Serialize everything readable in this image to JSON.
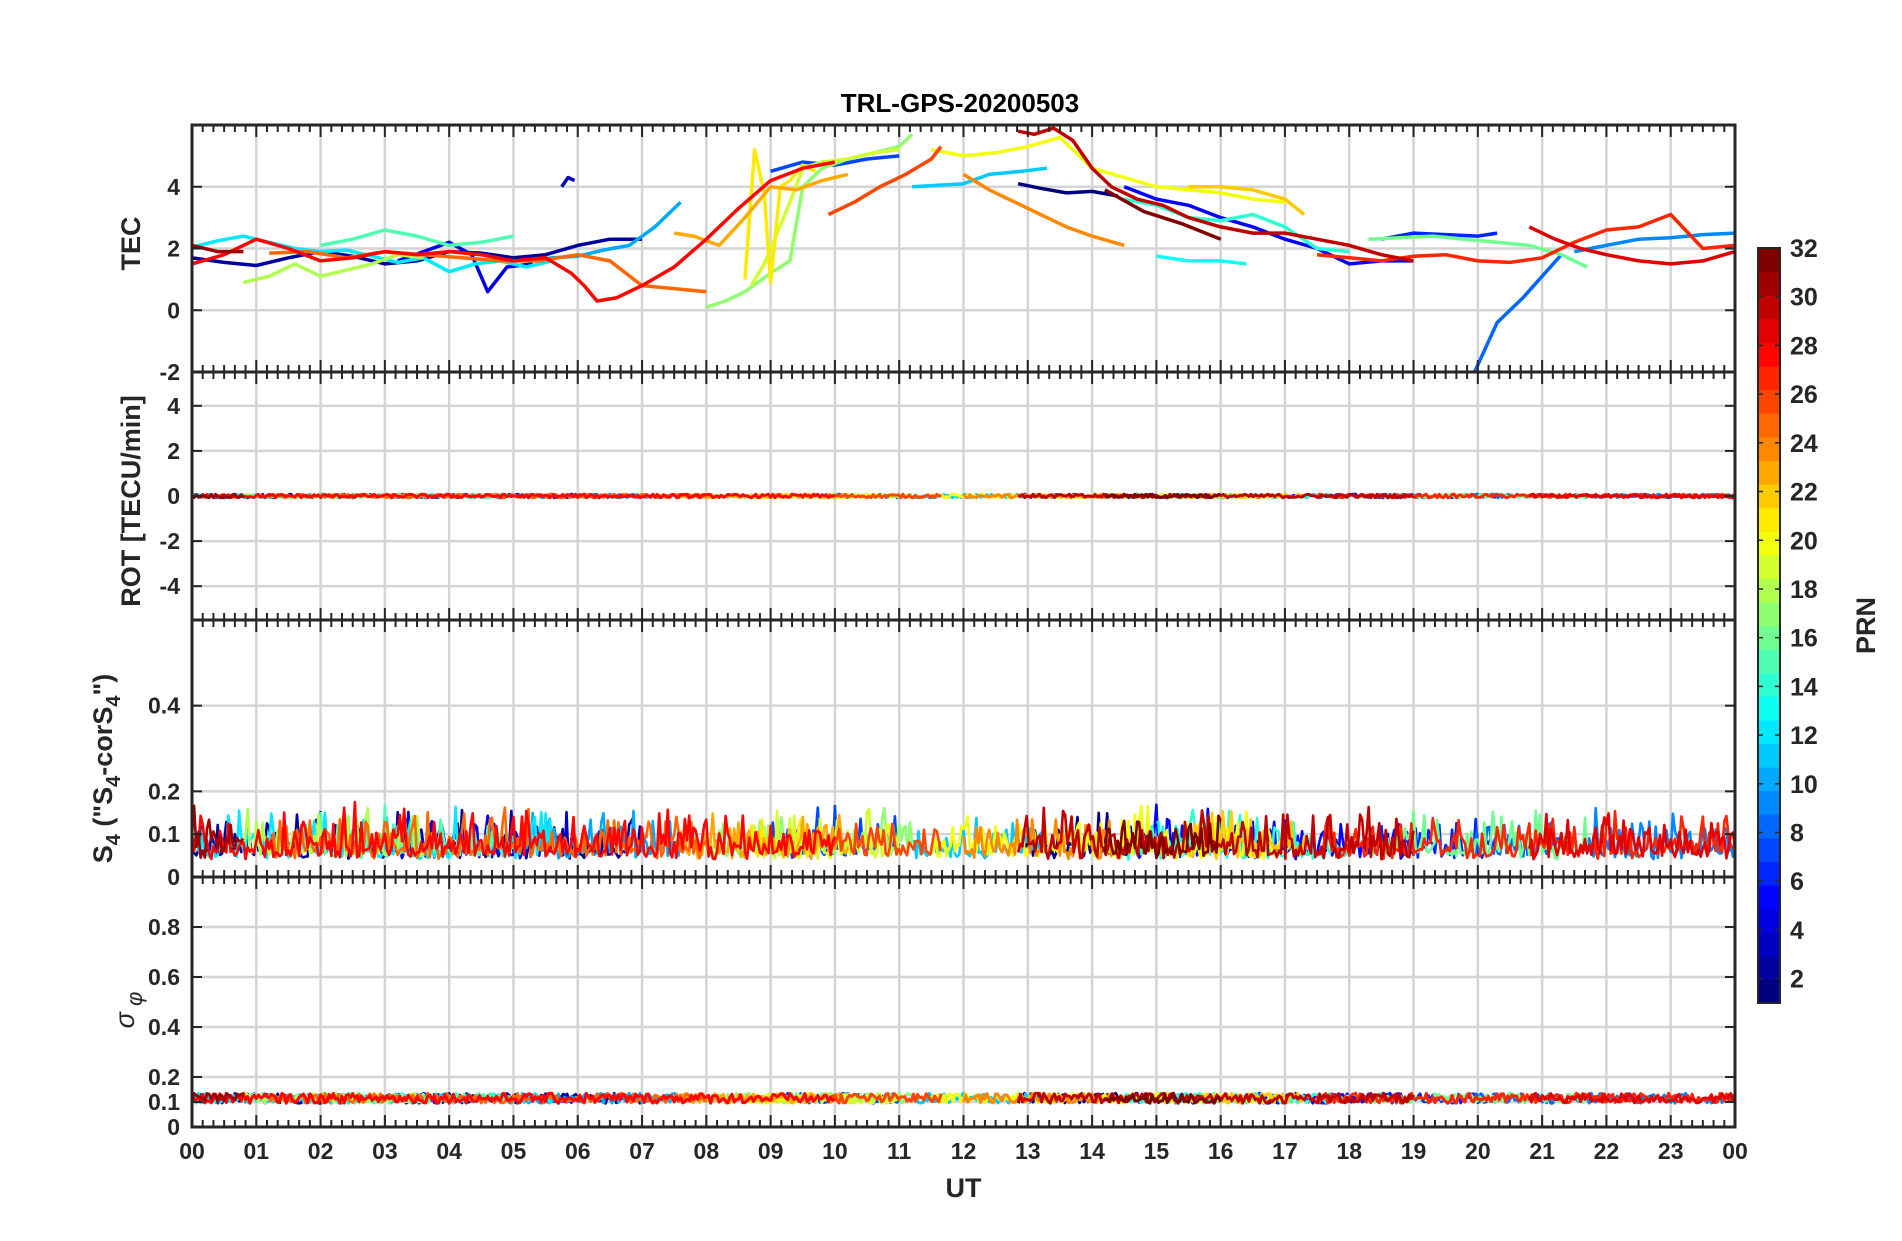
{
  "chart_data": {
    "type": "line",
    "title": "TRL-GPS-20200503",
    "xlabel": "UT",
    "x_ticks": [
      "00",
      "01",
      "02",
      "03",
      "04",
      "05",
      "06",
      "07",
      "08",
      "09",
      "10",
      "11",
      "12",
      "13",
      "14",
      "15",
      "16",
      "17",
      "18",
      "19",
      "20",
      "21",
      "22",
      "23",
      "00"
    ],
    "xlim": [
      0,
      24
    ],
    "colorbar": {
      "label": "PRN",
      "range": [
        1,
        32
      ],
      "ticks": [
        "2",
        "4",
        "6",
        "8",
        "10",
        "12",
        "14",
        "16",
        "18",
        "20",
        "22",
        "24",
        "26",
        "28",
        "30",
        "32"
      ],
      "colormap": "jet"
    },
    "panels": [
      {
        "name": "TEC",
        "ylabel": "TEC",
        "ylim": [
          -2,
          6
        ],
        "yticks": [
          -2,
          0,
          2,
          4
        ],
        "ytick_labels": [
          "-2",
          "0",
          "2",
          "4"
        ],
        "series": [
          {
            "prn": 1,
            "x": [
              12.85,
              13.2,
              13.6,
              14.0,
              14.4
            ],
            "y": [
              4.1,
              3.95,
              3.8,
              3.85,
              3.7
            ]
          },
          {
            "prn": 2,
            "x": [
              0,
              0.5,
              1.0,
              1.5,
              2.0,
              2.5,
              3.0,
              3.5,
              4.0,
              4.5,
              5.0,
              5.5,
              6.0,
              6.5,
              7.0
            ],
            "y": [
              1.7,
              1.55,
              1.45,
              1.7,
              1.9,
              1.75,
              1.5,
              1.6,
              1.9,
              1.85,
              1.7,
              1.8,
              2.1,
              2.3,
              2.3
            ]
          },
          {
            "prn": 3,
            "x": [
              5.75,
              5.85,
              5.95
            ],
            "y": [
              4.0,
              4.3,
              4.2
            ]
          },
          {
            "prn": 4,
            "x": [
              3.2,
              3.6,
              4.0,
              4.35,
              4.6,
              4.9,
              5.3
            ],
            "y": [
              1.6,
              1.9,
              2.2,
              1.8,
              0.6,
              1.4,
              1.5
            ]
          },
          {
            "prn": 5,
            "x": [
              14.5,
              15.0,
              15.5,
              16.0,
              16.5,
              17.0,
              17.5,
              18.0,
              18.5,
              19.0
            ],
            "y": [
              4.0,
              3.6,
              3.4,
              3.0,
              2.7,
              2.3,
              2.0,
              1.5,
              1.6,
              1.6
            ]
          },
          {
            "prn": 6,
            "x": [
              18.5,
              19.0,
              19.5,
              20.0,
              20.3
            ],
            "y": [
              2.3,
              2.5,
              2.45,
              2.4,
              2.5
            ]
          },
          {
            "prn": 7,
            "x": [
              9.0,
              9.5,
              10.0,
              10.5,
              11.0
            ],
            "y": [
              4.5,
              4.8,
              4.7,
              4.9,
              5.0
            ]
          },
          {
            "prn": 8,
            "x": [
              19.95,
              20.3,
              20.7,
              21.0,
              21.3
            ],
            "y": [
              -2.0,
              -0.4,
              0.4,
              1.1,
              1.8
            ]
          },
          {
            "prn": 9,
            "x": [
              21.5,
              22.0,
              22.5,
              23.0,
              23.5,
              24.0
            ],
            "y": [
              1.9,
              2.1,
              2.3,
              2.35,
              2.45,
              2.5
            ]
          },
          {
            "prn": 10,
            "x": [
              5.2,
              5.6,
              6.0,
              6.4,
              6.8,
              7.2,
              7.6
            ],
            "y": [
              1.6,
              1.7,
              1.75,
              1.95,
              2.1,
              2.7,
              3.5
            ]
          },
          {
            "prn": 11,
            "x": [
              11.2,
              11.6,
              12.0,
              12.4,
              12.9,
              13.3
            ],
            "y": [
              4.0,
              4.05,
              4.1,
              4.4,
              4.5,
              4.6
            ]
          },
          {
            "prn": 12,
            "x": [
              0,
              0.4,
              0.8,
              1.2,
              1.6,
              2.0,
              2.4,
              2.8,
              3.2,
              3.6,
              4.0,
              4.4,
              4.8,
              5.2,
              5.6
            ],
            "y": [
              2.05,
              2.25,
              2.4,
              2.2,
              2.0,
              1.9,
              1.95,
              1.75,
              1.55,
              1.7,
              1.25,
              1.5,
              1.6,
              1.4,
              1.6
            ]
          },
          {
            "prn": 13,
            "x": [
              15.0,
              15.5,
              16.0,
              16.4
            ],
            "y": [
              1.75,
              1.6,
              1.6,
              1.5
            ]
          },
          {
            "prn": 14,
            "x": [
              14.5,
              15.0,
              15.5,
              16.0,
              16.5,
              17.0,
              17.5,
              18.0
            ],
            "y": [
              3.6,
              3.4,
              3.0,
              2.9,
              3.1,
              2.7,
              2.0,
              1.9
            ]
          },
          {
            "prn": 15,
            "x": [
              2.0,
              2.5,
              3.0,
              3.5,
              4.0,
              4.5,
              5.0
            ],
            "y": [
              2.1,
              2.3,
              2.6,
              2.4,
              2.1,
              2.2,
              2.4
            ]
          },
          {
            "prn": 16,
            "x": [
              18.3,
              18.8,
              19.3,
              19.8,
              20.3,
              20.8,
              21.3,
              21.7
            ],
            "y": [
              2.3,
              2.35,
              2.4,
              2.3,
              2.2,
              2.1,
              1.8,
              1.4
            ]
          },
          {
            "prn": 17,
            "x": [
              8.0,
              8.3,
              8.6,
              9.0,
              9.3,
              9.5,
              9.8,
              10.2,
              10.6,
              11.0,
              11.2
            ],
            "y": [
              0.1,
              0.3,
              0.6,
              1.2,
              1.6,
              4.0,
              4.6,
              4.9,
              5.1,
              5.3,
              5.7
            ]
          },
          {
            "prn": 18,
            "x": [
              0.8,
              1.2,
              1.6,
              2.0,
              2.4,
              2.8,
              3.2,
              3.6
            ],
            "y": [
              0.9,
              1.1,
              1.5,
              1.1,
              1.3,
              1.5,
              1.8,
              1.7
            ]
          },
          {
            "prn": 19,
            "x": [
              8.7,
              8.9,
              9.1,
              9.3,
              9.5,
              9.8,
              10.2,
              10.6,
              11.0
            ],
            "y": [
              0.8,
              1.5,
              2.5,
              3.5,
              4.6,
              4.8,
              4.9,
              5.1,
              5.2
            ]
          },
          {
            "prn": 20,
            "x": [
              11.5,
              12.0,
              12.5,
              13.0,
              13.5,
              14.0,
              14.5,
              15.0,
              15.5,
              16.0,
              16.5,
              17.0
            ],
            "y": [
              5.2,
              5.0,
              5.1,
              5.3,
              5.6,
              4.6,
              4.3,
              4.0,
              3.9,
              3.8,
              3.6,
              3.5
            ]
          },
          {
            "prn": 21,
            "x": [
              8.6,
              8.75,
              8.9,
              9.0,
              9.15,
              9.3,
              9.5,
              9.7
            ],
            "y": [
              1.0,
              5.2,
              3.8,
              0.9,
              4.0,
              4.2,
              4.7,
              4.5
            ]
          },
          {
            "prn": 22,
            "x": [
              15.5,
              16.0,
              16.5,
              17.0,
              17.3
            ],
            "y": [
              4.0,
              4.0,
              3.9,
              3.6,
              3.1
            ]
          },
          {
            "prn": 23,
            "x": [
              7.5,
              7.8,
              8.2,
              8.6,
              9.0,
              9.4,
              9.8,
              10.2
            ],
            "y": [
              2.5,
              2.4,
              2.1,
              3.0,
              4.0,
              3.9,
              4.2,
              4.4
            ]
          },
          {
            "prn": 24,
            "x": [
              12.0,
              12.4,
              12.8,
              13.2,
              13.6,
              14.0,
              14.5
            ],
            "y": [
              4.4,
              3.9,
              3.5,
              3.1,
              2.7,
              2.4,
              2.1
            ]
          },
          {
            "prn": 25,
            "x": [
              1.2,
              1.8,
              2.4,
              3.0,
              3.6,
              4.2,
              4.8,
              5.4,
              6.0,
              6.5,
              7.0,
              7.5,
              8.0
            ],
            "y": [
              1.85,
              1.9,
              1.7,
              1.9,
              1.8,
              1.7,
              1.6,
              1.6,
              1.8,
              1.6,
              0.8,
              0.7,
              0.6
            ]
          },
          {
            "prn": 26,
            "x": [
              9.9,
              10.3,
              10.7,
              11.1,
              11.5,
              11.65
            ],
            "y": [
              3.1,
              3.5,
              4.0,
              4.4,
              4.9,
              5.3
            ]
          },
          {
            "prn": 27,
            "x": [
              17.5,
              18.0,
              18.5,
              19.0,
              19.5,
              20.0,
              20.5,
              21.0,
              21.5,
              22.0,
              22.5,
              23.0,
              23.5,
              24.0
            ],
            "y": [
              1.8,
              1.7,
              1.6,
              1.75,
              1.8,
              1.6,
              1.55,
              1.7,
              2.2,
              2.6,
              2.7,
              3.1,
              2.0,
              2.1
            ]
          },
          {
            "prn": 28,
            "x": [
              0,
              0.5,
              1.0,
              1.5,
              2.0,
              2.5,
              3.0,
              3.5,
              4.0,
              4.5,
              5.0,
              5.5,
              5.9,
              6.1,
              6.3,
              6.6,
              7.0,
              7.5,
              8.0,
              8.5,
              9.0,
              9.5,
              10.0
            ],
            "y": [
              1.5,
              1.8,
              2.3,
              2.0,
              1.6,
              1.7,
              1.9,
              1.8,
              1.9,
              1.8,
              1.6,
              1.7,
              1.2,
              0.8,
              0.3,
              0.4,
              0.8,
              1.4,
              2.3,
              3.3,
              4.2,
              4.6,
              4.8
            ]
          },
          {
            "prn": 29,
            "x": [
              20.8,
              21.2,
              21.6,
              22.0,
              22.5,
              23.0,
              23.5,
              24.0
            ],
            "y": [
              2.7,
              2.3,
              2.0,
              1.8,
              1.6,
              1.5,
              1.6,
              1.9
            ]
          },
          {
            "prn": 30,
            "x": [
              12.85,
              13.1,
              13.4,
              13.7,
              14.0,
              14.3,
              14.7,
              15.1,
              15.5,
              16.0,
              16.5,
              17.0,
              17.5,
              18.0,
              18.5,
              19.0
            ],
            "y": [
              5.8,
              5.7,
              5.9,
              5.5,
              4.6,
              4.0,
              3.6,
              3.4,
              3.0,
              2.7,
              2.5,
              2.5,
              2.3,
              2.1,
              1.8,
              1.6
            ]
          },
          {
            "prn": 31,
            "x": [
              0,
              0.4,
              0.8
            ],
            "y": [
              2.1,
              1.9,
              1.9
            ]
          },
          {
            "prn": 32,
            "x": [
              14.2,
              14.8,
              15.4,
              16.0
            ],
            "y": [
              3.9,
              3.2,
              2.8,
              2.3
            ]
          }
        ]
      },
      {
        "name": "ROT",
        "ylabel": "ROT [TECU/min]",
        "ylim": [
          -5.5,
          5.5
        ],
        "yticks": [
          -4,
          -2,
          0,
          2,
          4
        ],
        "ytick_labels": [
          "-4",
          "-2",
          "0",
          "2",
          "4"
        ],
        "baseline": 0,
        "noise_amplitude": 0.08
      },
      {
        "name": "S4",
        "ylabel": "S4 (\"S4-corS4\")",
        "ylabel_main": "S",
        "ylabel_sub": "4",
        "ylabel_mid": " (\"S",
        "ylabel_sub2": "4",
        "ylabel_mid2": "-corS",
        "ylabel_sub3": "4",
        "ylabel_end": "\")",
        "ylim": [
          0,
          0.6
        ],
        "yticks": [
          0,
          0.1,
          0.2,
          0.4
        ],
        "ytick_labels": [
          "0",
          "0.1",
          "0.2",
          "0.4"
        ],
        "baseline": 0.04,
        "noise_amplitude": 0.1
      },
      {
        "name": "sigma_phi",
        "ylabel": "σφ",
        "ylabel_main": "σ",
        "ylabel_sub": "φ",
        "ylim": [
          0,
          1
        ],
        "yticks": [
          0,
          0.1,
          0.2,
          0.4,
          0.6,
          0.8
        ],
        "ytick_labels": [
          "0",
          "0.1",
          "0.2",
          "0.4",
          "0.6",
          "0.8"
        ],
        "baseline": 0.115,
        "noise_amplitude": 0.02
      }
    ]
  }
}
